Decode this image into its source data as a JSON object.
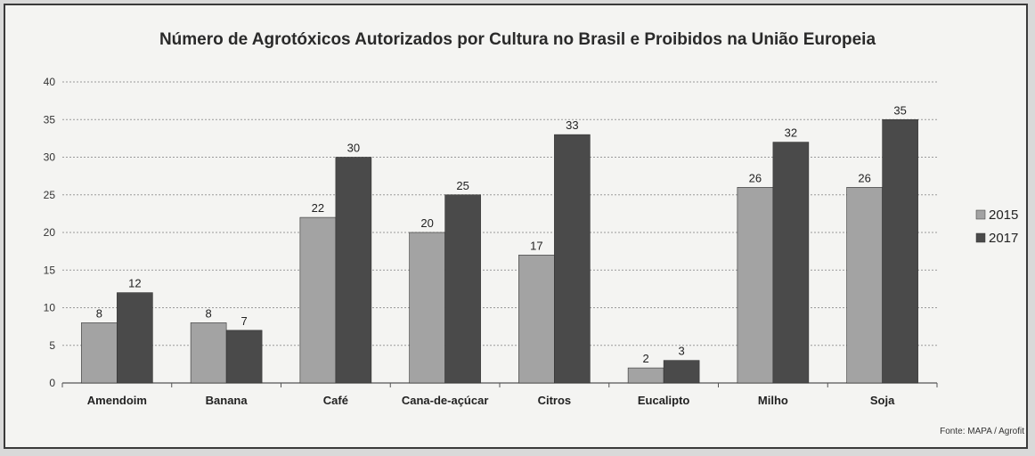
{
  "chart_data": {
    "type": "bar",
    "title": "Número de Agrotóxicos Autorizados por Cultura no Brasil e Proibidos na União Europeia",
    "categories": [
      "Amendoim",
      "Banana",
      "Café",
      "Cana-de-açúcar",
      "Citros",
      "Eucalipto",
      "Milho",
      "Soja"
    ],
    "series": [
      {
        "name": "2015",
        "values": [
          8,
          8,
          22,
          20,
          17,
          2,
          26,
          26
        ],
        "color": "#a3a3a3"
      },
      {
        "name": "2017",
        "values": [
          12,
          7,
          30,
          25,
          33,
          3,
          32,
          35
        ],
        "color": "#4a4a4a"
      }
    ],
    "yticks": [
      0,
      5,
      10,
      15,
      20,
      25,
      30,
      35,
      40
    ],
    "ylim": [
      0,
      40
    ],
    "grid": true,
    "legend": "right",
    "source": "Fonte: MAPA / Agrofit"
  }
}
